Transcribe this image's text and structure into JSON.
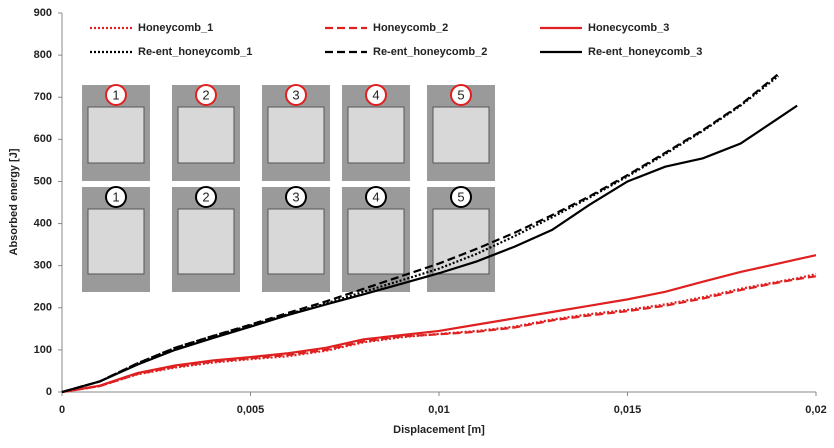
{
  "chart_data": {
    "type": "line",
    "x_label": "Displacement [m]",
    "y_label": "Absorbed energy [J]",
    "x": [
      0,
      0.001,
      0.002,
      0.003,
      0.004,
      0.005,
      0.006,
      0.007,
      0.008,
      0.009,
      0.01,
      0.011,
      0.012,
      0.013,
      0.014,
      0.015,
      0.016,
      0.017,
      0.018,
      0.019,
      0.0195,
      0.02
    ],
    "series": [
      {
        "name": "Honeycomb_1",
        "color": "#e02020",
        "dash": "dotted",
        "values": [
          0,
          14,
          42,
          58,
          70,
          78,
          85,
          98,
          118,
          130,
          138,
          145,
          155,
          172,
          185,
          195,
          208,
          225,
          245,
          262,
          270,
          280
        ]
      },
      {
        "name": "Honeycomb_2",
        "color": "#e02020",
        "dash": "dashed",
        "values": [
          0,
          14,
          43,
          60,
          72,
          80,
          88,
          100,
          120,
          132,
          137,
          143,
          153,
          170,
          182,
          192,
          205,
          222,
          242,
          260,
          268,
          275
        ]
      },
      {
        "name": "Honecycomb_3",
        "color": "#e02020",
        "dash": "solid",
        "values": [
          0,
          15,
          45,
          63,
          75,
          83,
          92,
          105,
          125,
          135,
          145,
          160,
          175,
          190,
          205,
          220,
          238,
          262,
          285,
          305,
          315,
          325
        ]
      },
      {
        "name": "Re-ent_honeycomb_1",
        "color": "#000000",
        "dash": "dotted",
        "values": [
          0,
          25,
          68,
          105,
          133,
          158,
          185,
          210,
          238,
          265,
          293,
          328,
          370,
          415,
          462,
          512,
          565,
          620,
          680,
          750,
          null,
          null
        ]
      },
      {
        "name": "Re-ent_honeycomb_2",
        "color": "#000000",
        "dash": "dashed",
        "values": [
          0,
          25,
          68,
          105,
          133,
          160,
          188,
          215,
          245,
          275,
          305,
          340,
          378,
          420,
          465,
          515,
          568,
          622,
          682,
          755,
          null,
          null
        ]
      },
      {
        "name": "Re-ent_honeycomb_3",
        "color": "#000000",
        "dash": "solid",
        "values": [
          0,
          25,
          65,
          100,
          128,
          155,
          183,
          208,
          232,
          257,
          282,
          310,
          345,
          385,
          445,
          500,
          535,
          555,
          590,
          650,
          680,
          null
        ]
      }
    ],
    "xlim": [
      0,
      0.02
    ],
    "xticks": [
      0,
      {
        "value": 0.005,
        "label": "0,005"
      },
      {
        "value": 0.01,
        "label": "0,01"
      },
      {
        "value": 0.015,
        "label": "0,015"
      },
      {
        "value": 0.02,
        "label": "0,02"
      }
    ],
    "ylim": [
      0,
      900
    ],
    "yticks": [
      0,
      100,
      200,
      300,
      400,
      500,
      600,
      700,
      800,
      900
    ],
    "annotations": [
      "1",
      "2",
      "3",
      "4",
      "5",
      "1",
      "2",
      "3",
      "4",
      "5"
    ]
  }
}
